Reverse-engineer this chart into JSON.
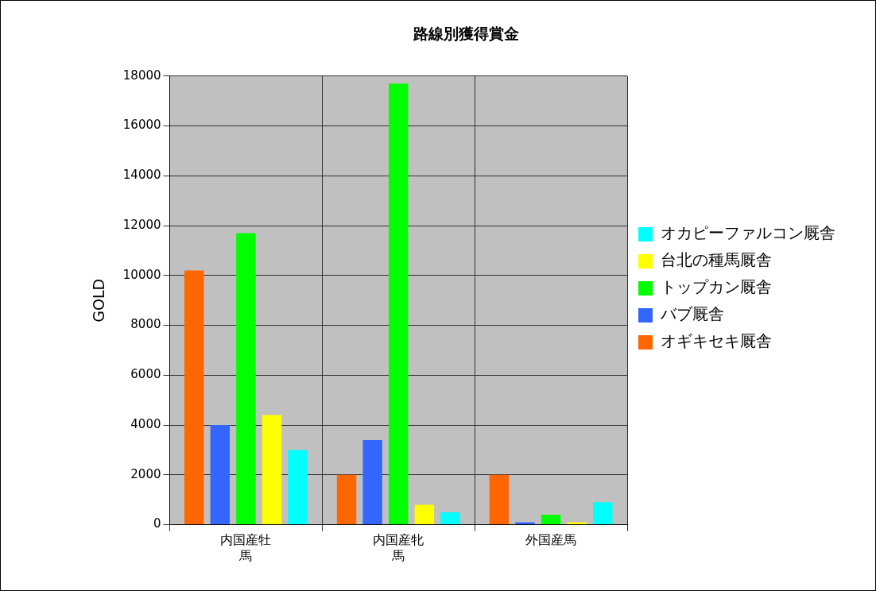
{
  "chart_data": {
    "type": "bar",
    "title": "路線別獲得賞金",
    "ylabel": "GOLD",
    "categories": [
      "内国産牡馬",
      "内国産牝馬",
      "外国産馬"
    ],
    "series": [
      {
        "name": "オギキセキ厩舎",
        "color": "#ff6600",
        "values": [
          10200,
          2000,
          2000
        ]
      },
      {
        "name": "バブ厩舎",
        "color": "#3366ff",
        "values": [
          4000,
          3400,
          0
        ]
      },
      {
        "name": "トップカン厩舎",
        "color": "#00ff00",
        "values": [
          11700,
          17700,
          400
        ]
      },
      {
        "name": "台北の種馬厩舎",
        "color": "#ffff00",
        "values": [
          4400,
          800,
          0
        ]
      },
      {
        "name": "オカピーファルコン厩舎",
        "color": "#00ffff",
        "values": [
          3000,
          500,
          900
        ]
      }
    ],
    "ylim": [
      0,
      18000
    ],
    "yticks": [
      0,
      2000,
      4000,
      6000,
      8000,
      10000,
      12000,
      14000,
      16000,
      18000
    ],
    "grid": true,
    "legend": "right"
  }
}
